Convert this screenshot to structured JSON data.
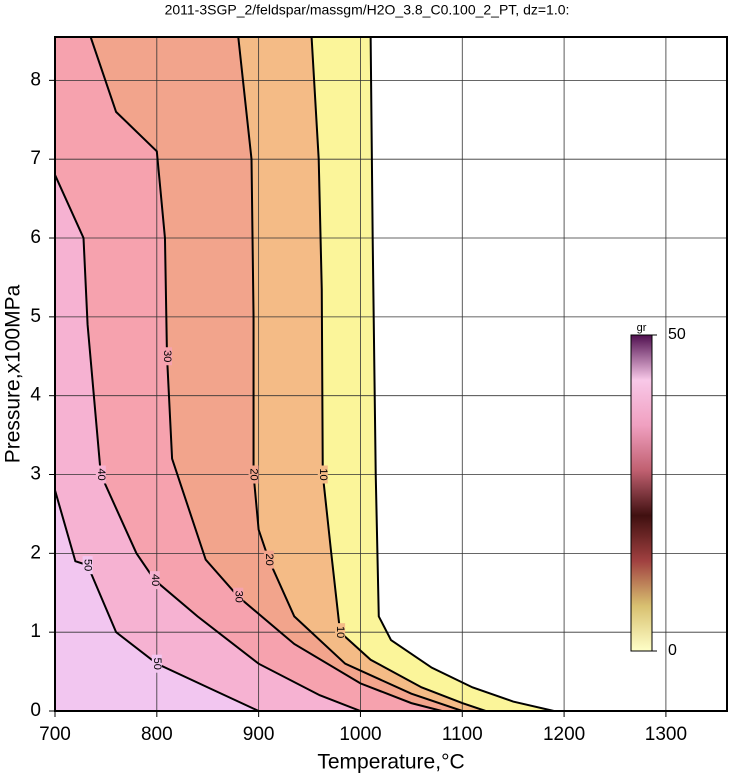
{
  "chart_data": {
    "type": "contour",
    "title": "2011-3SGP_2/feldspar/massgm/H2O_3.8_C0.100_2_PT, dz=1.0:",
    "x_label": "Temperature,°C",
    "y_label": "Pressure,x100MPa",
    "xlim": [
      700,
      1360
    ],
    "ylim": [
      0,
      8.55
    ],
    "xticks": [
      700,
      800,
      900,
      1000,
      1100,
      1200,
      1300
    ],
    "yticks": [
      0,
      1,
      2,
      3,
      4,
      5,
      6,
      7,
      8
    ],
    "grid": true,
    "contours": [
      {
        "level": 0,
        "color": "#fbf59a",
        "x": [
          1010,
          1012,
          1015,
          1018,
          1030,
          1070,
          1110,
          1150,
          1190
        ],
        "y": [
          8.55,
          6,
          3,
          1.2,
          0.9,
          0.55,
          0.3,
          0.12,
          0
        ]
      },
      {
        "level": 10,
        "color": "#f4bb86",
        "x": [
          952,
          959,
          962,
          963,
          971,
          980,
          1010,
          1060,
          1100,
          1123
        ],
        "y": [
          8.55,
          7,
          5.35,
          3,
          2.04,
          1.0,
          0.65,
          0.3,
          0.1,
          0
        ]
      },
      {
        "level": 20,
        "color": "#f2a48c",
        "x": [
          880,
          893,
          895,
          895,
          900,
          910,
          935,
          985,
          1050,
          1100
        ],
        "y": [
          8.55,
          7,
          5,
          3,
          2.3,
          1.92,
          1.2,
          0.6,
          0.22,
          0
        ]
      },
      {
        "level": 30,
        "color": "#f6a2ae",
        "x": [
          735,
          760,
          800,
          808,
          810,
          815,
          848,
          880,
          935,
          1000,
          1050,
          1080
        ],
        "y": [
          8.55,
          7.6,
          7.1,
          6,
          4.5,
          3.2,
          1.92,
          1.45,
          0.85,
          0.35,
          0.1,
          0
        ]
      },
      {
        "level": 40,
        "color": "#f6b2d2",
        "x": [
          700,
          728,
          732,
          745,
          780,
          798,
          840,
          900,
          960,
          1000
        ],
        "y": [
          6.8,
          6,
          4.9,
          3,
          2,
          1.66,
          1.2,
          0.6,
          0.2,
          0
        ]
      },
      {
        "level": 50,
        "color": "#f2c6f0",
        "x": [
          700,
          720,
          732,
          760,
          800,
          850,
          900
        ],
        "y": [
          2.8,
          1.9,
          1.85,
          1.0,
          0.6,
          0.3,
          0
        ]
      }
    ],
    "colorbar": {
      "label": "gr",
      "lim": [
        0,
        50
      ],
      "ticks": [
        0,
        50
      ],
      "colors": [
        "#ffffc8",
        "#d8c070",
        "#a04040",
        "#401010",
        "#c06070",
        "#f0a0c0",
        "#f8c8e8",
        "#501050"
      ]
    }
  }
}
